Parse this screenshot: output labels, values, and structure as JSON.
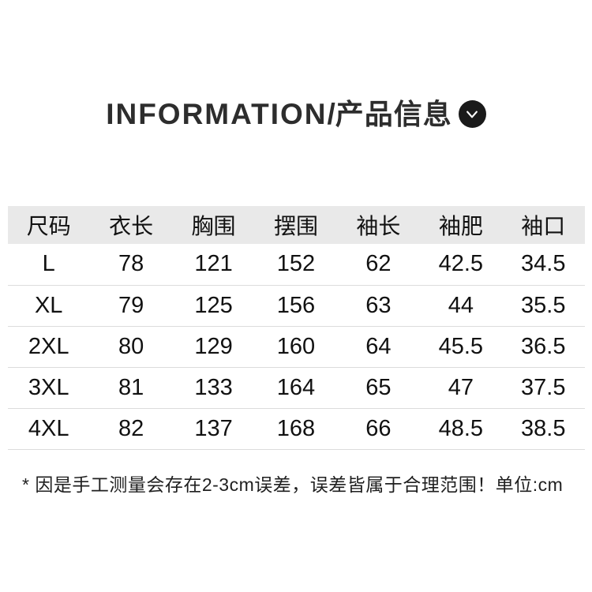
{
  "header": {
    "title_en": "INFORMATION",
    "divider": "/",
    "title_zh": "产品信息",
    "icon": "chevron-down"
  },
  "chart_data": {
    "type": "table",
    "title": "INFORMATION/产品信息",
    "columns": [
      "尺码",
      "衣长",
      "胸围",
      "摆围",
      "袖长",
      "袖肥",
      "袖口"
    ],
    "rows": [
      [
        "L",
        "78",
        "121",
        "152",
        "62",
        "42.5",
        "34.5"
      ],
      [
        "XL",
        "79",
        "125",
        "156",
        "63",
        "44",
        "35.5"
      ],
      [
        "2XL",
        "80",
        "129",
        "160",
        "64",
        "45.5",
        "36.5"
      ],
      [
        "3XL",
        "81",
        "133",
        "164",
        "65",
        "47",
        "37.5"
      ],
      [
        "4XL",
        "82",
        "137",
        "168",
        "66",
        "48.5",
        "38.5"
      ]
    ],
    "unit": "cm"
  },
  "footnote": "* 因是手工测量会存在2-3cm误差，误差皆属于合理范围！单位:cm",
  "colors": {
    "title_text": "#2d2d2d",
    "table_text": "#111111",
    "header_bg": "#e9e9e9",
    "row_divider": "#dcdcdc",
    "icon_bg": "#1a1a1a",
    "icon_glyph": "#ffffff"
  }
}
